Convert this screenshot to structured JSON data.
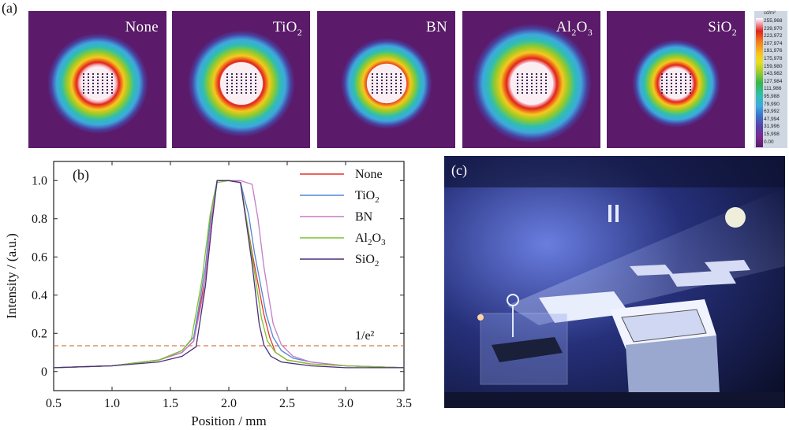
{
  "panel_a": {
    "label": "(a)",
    "beams": [
      {
        "name": "None",
        "sub": ""
      },
      {
        "name": "TiO",
        "sub": "2"
      },
      {
        "name": "BN",
        "sub": ""
      },
      {
        "name": "Al",
        "sub": "2",
        "name2": "O",
        "sub2": "3"
      },
      {
        "name": "SiO",
        "sub": "2"
      }
    ],
    "colorbar": {
      "unit": "cd/m²",
      "ticks": [
        "255,968",
        "239,970",
        "223,972",
        "207,974",
        "191,976",
        "175,978",
        "159,980",
        "143,982",
        "127,984",
        "111,986",
        "95,988",
        "79,990",
        "63,992",
        "47,994",
        "31,996",
        "15,998",
        "0.00"
      ]
    }
  },
  "panel_b": {
    "label": "(b)",
    "annotation": "1/e²",
    "chart_data": {
      "type": "line",
      "xlabel": "Position / mm",
      "ylabel": "Intensity / (a.u.)",
      "xlim": [
        0.5,
        3.5
      ],
      "ylim": [
        -0.1,
        1.1
      ],
      "xticks": [
        "0.5",
        "1.0",
        "1.5",
        "2.0",
        "2.5",
        "3.0",
        "3.5"
      ],
      "yticks": [
        "0",
        "0.2",
        "0.4",
        "0.6",
        "0.8",
        "1.0"
      ],
      "reference_line": {
        "y": 0.135,
        "label": "1/e²",
        "color": "#d9774a"
      },
      "legend_placement": "top-right",
      "series": [
        {
          "name": "None",
          "sub": "",
          "color": "#e5332a",
          "x": [
            0.5,
            1.0,
            1.4,
            1.6,
            1.7,
            1.8,
            1.85,
            1.9,
            2.0,
            2.1,
            2.15,
            2.2,
            2.3,
            2.35,
            2.4,
            2.5,
            2.7,
            3.0,
            3.5
          ],
          "y": [
            0.02,
            0.03,
            0.06,
            0.1,
            0.16,
            0.5,
            0.8,
            1.0,
            1.0,
            0.99,
            0.8,
            0.62,
            0.3,
            0.18,
            0.1,
            0.06,
            0.04,
            0.03,
            0.02
          ]
        },
        {
          "name": "TiO",
          "sub": "2",
          "color": "#4f87d6",
          "x": [
            0.5,
            1.0,
            1.4,
            1.6,
            1.7,
            1.8,
            1.85,
            1.9,
            2.0,
            2.1,
            2.17,
            2.22,
            2.32,
            2.38,
            2.45,
            2.55,
            2.7,
            3.0,
            3.5
          ],
          "y": [
            0.02,
            0.03,
            0.06,
            0.11,
            0.18,
            0.55,
            0.85,
            1.0,
            1.0,
            0.99,
            0.82,
            0.62,
            0.3,
            0.18,
            0.11,
            0.07,
            0.05,
            0.03,
            0.02
          ]
        },
        {
          "name": "BN",
          "sub": "",
          "color": "#c57bc8",
          "x": [
            0.5,
            1.0,
            1.4,
            1.6,
            1.7,
            1.78,
            1.85,
            1.9,
            2.0,
            2.1,
            2.2,
            2.25,
            2.3,
            2.38,
            2.45,
            2.55,
            2.7,
            3.0,
            3.5
          ],
          "y": [
            0.02,
            0.03,
            0.06,
            0.1,
            0.16,
            0.4,
            0.8,
            1.0,
            1.0,
            1.0,
            0.98,
            0.8,
            0.55,
            0.25,
            0.14,
            0.08,
            0.05,
            0.03,
            0.02
          ]
        },
        {
          "name": "Al",
          "sub": "2",
          "name2": "O",
          "sub2": "3",
          "color": "#7cc22c",
          "x": [
            0.5,
            1.0,
            1.4,
            1.6,
            1.68,
            1.77,
            1.84,
            1.9,
            2.0,
            2.1,
            2.15,
            2.2,
            2.28,
            2.33,
            2.4,
            2.5,
            2.7,
            3.0,
            3.5
          ],
          "y": [
            0.02,
            0.03,
            0.06,
            0.11,
            0.17,
            0.48,
            0.82,
            0.99,
            1.0,
            0.99,
            0.8,
            0.6,
            0.28,
            0.16,
            0.1,
            0.06,
            0.04,
            0.03,
            0.02
          ]
        },
        {
          "name": "SiO",
          "sub": "2",
          "color": "#4a2f7a",
          "x": [
            0.5,
            1.0,
            1.4,
            1.6,
            1.72,
            1.8,
            1.86,
            1.9,
            2.0,
            2.1,
            2.15,
            2.2,
            2.26,
            2.3,
            2.36,
            2.45,
            2.7,
            3.0,
            3.5
          ],
          "y": [
            0.02,
            0.03,
            0.05,
            0.08,
            0.13,
            0.45,
            0.8,
            1.0,
            1.0,
            0.99,
            0.78,
            0.56,
            0.25,
            0.14,
            0.08,
            0.05,
            0.03,
            0.02,
            0.02
          ]
        }
      ]
    }
  },
  "panel_c": {
    "label": "(c)"
  }
}
